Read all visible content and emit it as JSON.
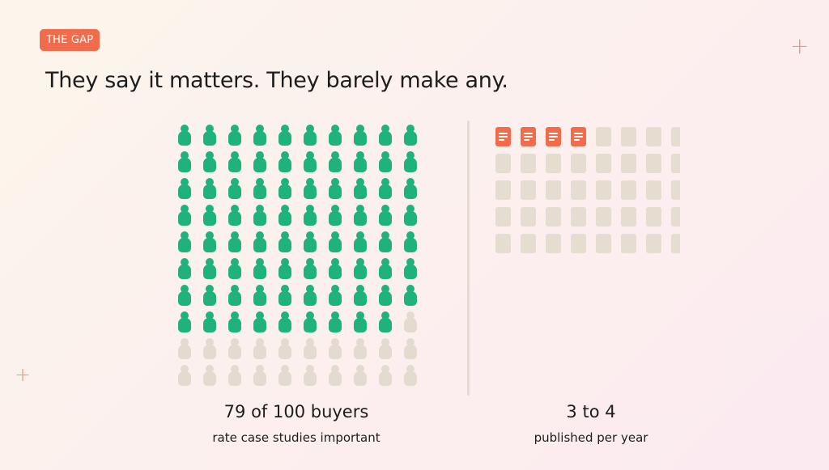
{
  "tag": "THE GAP",
  "headline": "They say it matters. They barely make any.",
  "colors": {
    "accent": "#f26b4a",
    "highlight": "#1fb27c",
    "muted": "#e4dbd0"
  },
  "left": {
    "icon": "person-icon",
    "total": 100,
    "highlighted": 79,
    "columns": 10,
    "value": "79 of 100 buyers",
    "label": "rate case studies important"
  },
  "right": {
    "icon": "document-icon",
    "total": 40,
    "highlighted": 4,
    "columns": 8,
    "value": "3 to 4",
    "label": "published per year"
  }
}
